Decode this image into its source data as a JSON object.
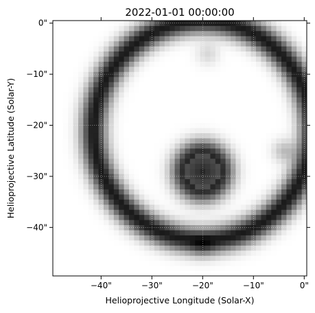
{
  "chart_data": {
    "type": "heatmap",
    "title": "2022-01-01 00:00:00",
    "xlabel": "Helioprojective Longitude (Solar-X)",
    "ylabel": "Helioprojective Latitude (Solar-Y)",
    "xlim": [
      -49,
      0
    ],
    "ylim": [
      -49,
      0
    ],
    "x_ticks": [
      {
        "value": -40,
        "label": "−40\""
      },
      {
        "value": -30,
        "label": "−30\""
      },
      {
        "value": -20,
        "label": "−20\""
      },
      {
        "value": -10,
        "label": "−10\""
      },
      {
        "value": 0,
        "label": "0\""
      }
    ],
    "y_ticks": [
      {
        "value": 0,
        "label": "0\""
      },
      {
        "value": -10,
        "label": "−10\""
      },
      {
        "value": -20,
        "label": "−20\""
      },
      {
        "value": -30,
        "label": "−30\""
      },
      {
        "value": -40,
        "label": "−40\""
      }
    ],
    "colormap": "grays_reversed",
    "colors": {
      "high": "#000000",
      "low": "#ffffff",
      "grid": "#ffffff"
    },
    "grid": true,
    "features": [
      {
        "shape": "ring",
        "center": [
          -20,
          -21
        ],
        "radius": 21.5,
        "width": 2.6,
        "peak_intensity": 0.9
      },
      {
        "shape": "disk",
        "center": [
          -20,
          -29
        ],
        "radius": 3.5,
        "blur": 2.8,
        "peak_intensity": 0.85
      }
    ],
    "bright_spots": [
      {
        "position": [
          -4,
          -25
        ],
        "intensity": 0.25
      },
      {
        "position": [
          -19,
          -6
        ],
        "intensity": 0.15
      },
      {
        "position": [
          -20,
          -44
        ],
        "intensity": 0.15
      }
    ],
    "pixel_size_arcsec": 1
  }
}
